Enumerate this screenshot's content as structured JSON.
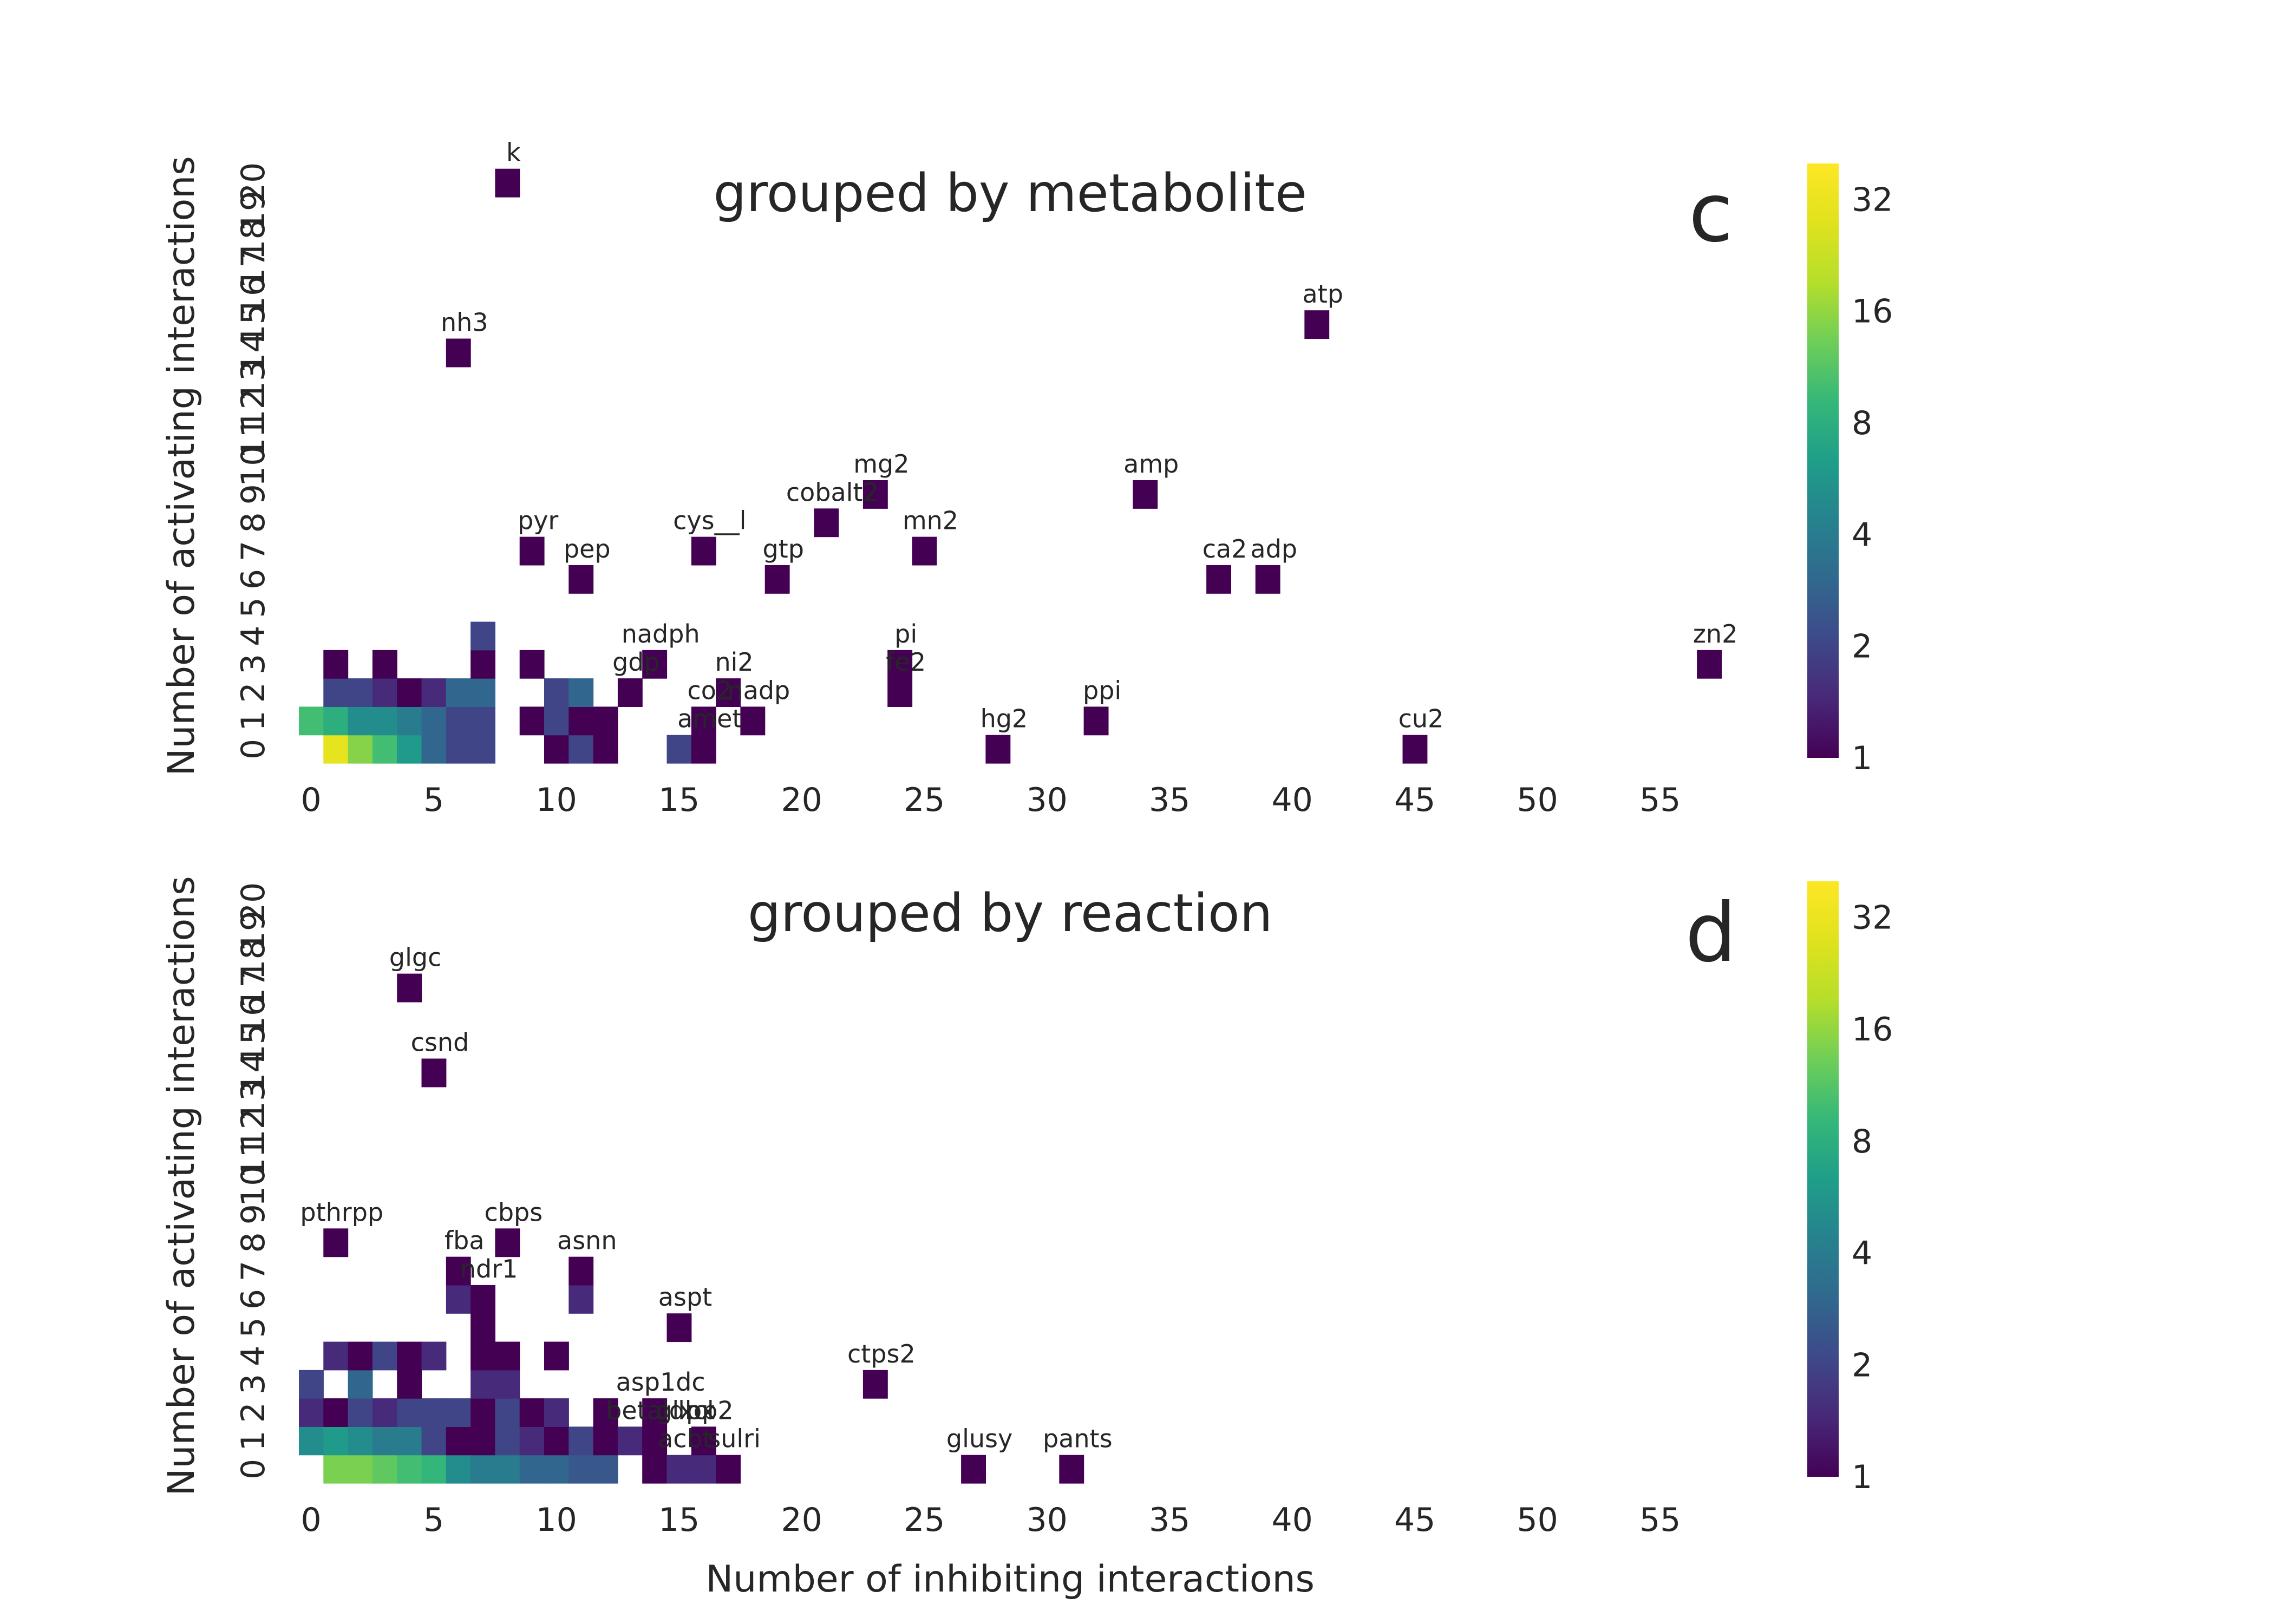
{
  "chart_data": [
    {
      "type": "heatmap",
      "panel": "c",
      "title": "grouped by metabolite",
      "xlabel": "",
      "ylabel": "Number of activating interactions",
      "x_range": [
        0,
        57
      ],
      "y_range": [
        0,
        20
      ],
      "x_ticks": [
        "0",
        "5",
        "10",
        "15",
        "20",
        "25",
        "30",
        "35",
        "40",
        "45",
        "50",
        "55"
      ],
      "y_ticks": [
        "0",
        "1",
        "2",
        "3",
        "4",
        "5",
        "6",
        "7",
        "8",
        "9",
        "10",
        "11",
        "12",
        "13",
        "14",
        "15",
        "16",
        "17",
        "18",
        "19",
        "20"
      ],
      "colorbar": {
        "colormap": "viridis",
        "scale": "log",
        "min": 1,
        "max": 40,
        "ticks": [
          "1",
          "2",
          "4",
          "8",
          "16",
          "32"
        ]
      },
      "cells": [
        [
          1,
          0,
          30
        ],
        [
          2,
          0,
          15
        ],
        [
          3,
          0,
          10
        ],
        [
          4,
          0,
          6
        ],
        [
          5,
          0,
          3
        ],
        [
          6,
          0,
          2
        ],
        [
          7,
          0,
          2
        ],
        [
          10,
          0,
          1
        ],
        [
          11,
          0,
          2
        ],
        [
          12,
          0,
          1
        ],
        [
          15,
          0,
          2
        ],
        [
          16,
          0,
          1
        ],
        [
          28,
          0,
          1
        ],
        [
          45,
          0,
          1
        ],
        [
          0,
          1,
          10
        ],
        [
          1,
          1,
          8
        ],
        [
          2,
          1,
          5
        ],
        [
          3,
          1,
          5
        ],
        [
          4,
          1,
          4
        ],
        [
          5,
          1,
          3
        ],
        [
          6,
          1,
          2
        ],
        [
          7,
          1,
          2
        ],
        [
          9,
          1,
          1
        ],
        [
          10,
          1,
          2
        ],
        [
          11,
          1,
          1
        ],
        [
          12,
          1,
          1
        ],
        [
          16,
          1,
          1
        ],
        [
          18,
          1,
          1
        ],
        [
          32,
          1,
          1
        ],
        [
          1,
          2,
          2
        ],
        [
          2,
          2,
          2
        ],
        [
          3,
          2,
          1.5
        ],
        [
          4,
          2,
          1
        ],
        [
          5,
          2,
          1.5
        ],
        [
          6,
          2,
          3
        ],
        [
          7,
          2,
          3
        ],
        [
          10,
          2,
          2
        ],
        [
          11,
          2,
          3
        ],
        [
          13,
          2,
          1
        ],
        [
          17,
          2,
          1
        ],
        [
          24,
          2,
          1
        ],
        [
          1,
          3,
          1
        ],
        [
          3,
          3,
          1
        ],
        [
          7,
          3,
          1
        ],
        [
          9,
          3,
          1
        ],
        [
          14,
          3,
          1
        ],
        [
          24,
          3,
          1
        ],
        [
          57,
          3,
          1
        ],
        [
          7,
          4,
          2
        ],
        [
          11,
          6,
          1
        ],
        [
          19,
          6,
          1
        ],
        [
          37,
          6,
          1
        ],
        [
          39,
          6,
          1
        ],
        [
          9,
          7,
          1
        ],
        [
          16,
          7,
          1
        ],
        [
          25,
          7,
          1
        ],
        [
          21,
          8,
          1
        ],
        [
          23,
          9,
          1
        ],
        [
          34,
          9,
          1
        ],
        [
          6,
          14,
          1
        ],
        [
          41,
          15,
          1
        ],
        [
          8,
          20,
          1
        ]
      ],
      "annotations": [
        {
          "label": "k",
          "x": 8,
          "y": 20
        },
        {
          "label": "nh3",
          "x": 6,
          "y": 14
        },
        {
          "label": "atp",
          "x": 41,
          "y": 15
        },
        {
          "label": "mg2",
          "x": 23,
          "y": 9
        },
        {
          "label": "amp",
          "x": 34,
          "y": 9
        },
        {
          "label": "cobalt2",
          "x": 21,
          "y": 8
        },
        {
          "label": "pyr",
          "x": 9,
          "y": 7
        },
        {
          "label": "cys__l",
          "x": 16,
          "y": 7
        },
        {
          "label": "mn2",
          "x": 25,
          "y": 7
        },
        {
          "label": "pep",
          "x": 11,
          "y": 6
        },
        {
          "label": "gtp",
          "x": 19,
          "y": 6
        },
        {
          "label": "ca2",
          "x": 37,
          "y": 6
        },
        {
          "label": "adp",
          "x": 39,
          "y": 6
        },
        {
          "label": "nadph",
          "x": 14,
          "y": 3
        },
        {
          "label": "pi",
          "x": 24,
          "y": 3
        },
        {
          "label": "zn2",
          "x": 57,
          "y": 3
        },
        {
          "label": "gdp",
          "x": 13,
          "y": 2
        },
        {
          "label": "ni2",
          "x": 17,
          "y": 2
        },
        {
          "label": "fe2",
          "x": 24,
          "y": 2
        },
        {
          "label": "co2",
          "x": 16,
          "y": 1
        },
        {
          "label": "nadp",
          "x": 18,
          "y": 1
        },
        {
          "label": "ppi",
          "x": 32,
          "y": 1
        },
        {
          "label": "amet",
          "x": 16,
          "y": 0
        },
        {
          "label": "hg2",
          "x": 28,
          "y": 0
        },
        {
          "label": "cu2",
          "x": 45,
          "y": 0
        }
      ]
    },
    {
      "type": "heatmap",
      "panel": "d",
      "title": "grouped by reaction",
      "xlabel": "Number of inhibiting interactions",
      "ylabel": "Number of activating interactions",
      "x_range": [
        0,
        57
      ],
      "y_range": [
        0,
        20
      ],
      "x_ticks": [
        "0",
        "5",
        "10",
        "15",
        "20",
        "25",
        "30",
        "35",
        "40",
        "45",
        "50",
        "55"
      ],
      "y_ticks": [
        "0",
        "1",
        "2",
        "3",
        "4",
        "5",
        "6",
        "7",
        "8",
        "9",
        "10",
        "11",
        "12",
        "13",
        "14",
        "15",
        "16",
        "17",
        "18",
        "19",
        "20"
      ],
      "colorbar": {
        "colormap": "viridis",
        "scale": "log",
        "min": 1,
        "max": 40,
        "ticks": [
          "1",
          "2",
          "4",
          "8",
          "16",
          "32"
        ]
      },
      "cells": [
        [
          1,
          0,
          14
        ],
        [
          2,
          0,
          14
        ],
        [
          3,
          0,
          12
        ],
        [
          4,
          0,
          10
        ],
        [
          5,
          0,
          9
        ],
        [
          6,
          0,
          5
        ],
        [
          7,
          0,
          4
        ],
        [
          8,
          0,
          4
        ],
        [
          9,
          0,
          3
        ],
        [
          10,
          0,
          3
        ],
        [
          11,
          0,
          2.5
        ],
        [
          12,
          0,
          2.5
        ],
        [
          14,
          0,
          1
        ],
        [
          15,
          0,
          1.5
        ],
        [
          16,
          0,
          1.5
        ],
        [
          17,
          0,
          1
        ],
        [
          27,
          0,
          1
        ],
        [
          31,
          0,
          1
        ],
        [
          0,
          1,
          5
        ],
        [
          1,
          1,
          6
        ],
        [
          2,
          1,
          5
        ],
        [
          3,
          1,
          4
        ],
        [
          4,
          1,
          4
        ],
        [
          5,
          1,
          2
        ],
        [
          6,
          1,
          1
        ],
        [
          7,
          1,
          1
        ],
        [
          8,
          1,
          2
        ],
        [
          9,
          1,
          1.5
        ],
        [
          10,
          1,
          1
        ],
        [
          11,
          1,
          2
        ],
        [
          12,
          1,
          1
        ],
        [
          13,
          1,
          1.5
        ],
        [
          14,
          1,
          1
        ],
        [
          16,
          1,
          1
        ],
        [
          0,
          2,
          1.5
        ],
        [
          1,
          2,
          1
        ],
        [
          2,
          2,
          2
        ],
        [
          3,
          2,
          1.5
        ],
        [
          4,
          2,
          2
        ],
        [
          5,
          2,
          2
        ],
        [
          6,
          2,
          2
        ],
        [
          7,
          2,
          1
        ],
        [
          8,
          2,
          2
        ],
        [
          9,
          2,
          1
        ],
        [
          10,
          2,
          1.5
        ],
        [
          12,
          2,
          1
        ],
        [
          14,
          2,
          1
        ],
        [
          0,
          3,
          2
        ],
        [
          2,
          3,
          3
        ],
        [
          4,
          3,
          1
        ],
        [
          7,
          3,
          1.5
        ],
        [
          8,
          3,
          1.5
        ],
        [
          23,
          3,
          1
        ],
        [
          1,
          4,
          1.5
        ],
        [
          2,
          4,
          1
        ],
        [
          3,
          4,
          2
        ],
        [
          4,
          4,
          1
        ],
        [
          5,
          4,
          1.5
        ],
        [
          7,
          4,
          1
        ],
        [
          8,
          4,
          1
        ],
        [
          10,
          4,
          1
        ],
        [
          7,
          5,
          1
        ],
        [
          15,
          5,
          1
        ],
        [
          6,
          6,
          1.5
        ],
        [
          7,
          6,
          1
        ],
        [
          11,
          6,
          1.5
        ],
        [
          6,
          7,
          1
        ],
        [
          11,
          7,
          1
        ],
        [
          1,
          8,
          1
        ],
        [
          8,
          8,
          1
        ],
        [
          5,
          14,
          1
        ],
        [
          4,
          17,
          1
        ]
      ],
      "annotations": [
        {
          "label": "glgc",
          "x": 4,
          "y": 17
        },
        {
          "label": "csnd",
          "x": 5,
          "y": 14
        },
        {
          "label": "pthrpp",
          "x": 1,
          "y": 8
        },
        {
          "label": "cbps",
          "x": 8,
          "y": 8
        },
        {
          "label": "fba",
          "x": 6,
          "y": 7
        },
        {
          "label": "asnn",
          "x": 11,
          "y": 7
        },
        {
          "label": "ndr1",
          "x": 7,
          "y": 6
        },
        {
          "label": "aspt",
          "x": 15,
          "y": 5
        },
        {
          "label": "ctps2",
          "x": 23,
          "y": 3
        },
        {
          "label": "asp1dc",
          "x": 14,
          "y": 2
        },
        {
          "label": "betaldhx",
          "x": 14,
          "y": 1
        },
        {
          "label": "glxcl",
          "x": 15,
          "y": 1
        },
        {
          "label": "pp2",
          "x": 16,
          "y": 1
        },
        {
          "label": "acbt",
          "x": 15,
          "y": 0
        },
        {
          "label": "sulri",
          "x": 17,
          "y": 0
        },
        {
          "label": "glusy",
          "x": 27,
          "y": 0
        },
        {
          "label": "pants",
          "x": 31,
          "y": 0
        }
      ]
    }
  ]
}
